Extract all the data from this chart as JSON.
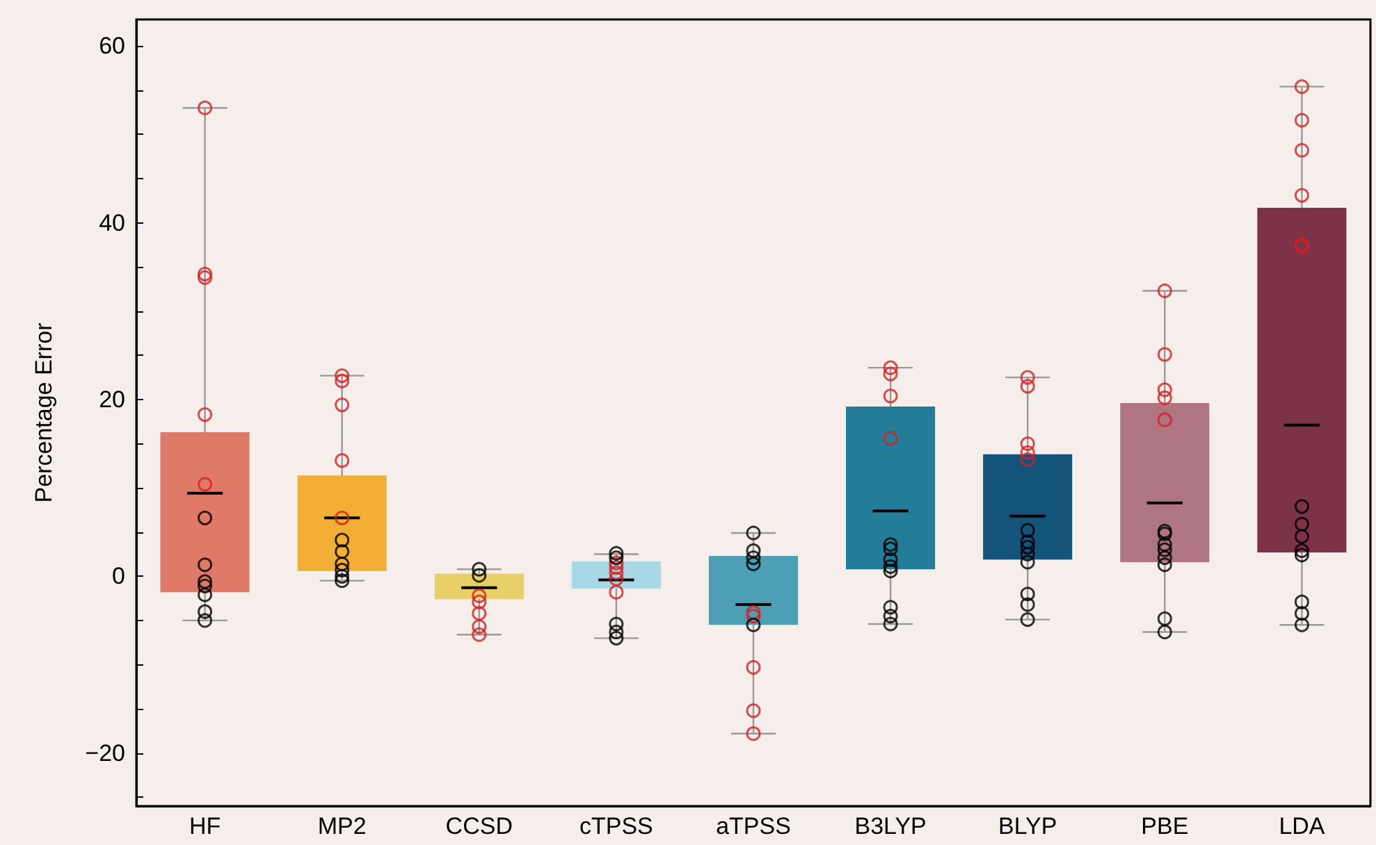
{
  "chart_data": {
    "type": "box",
    "ylabel": "Percentage Error",
    "categories": [
      "HF",
      "MP2",
      "CCSD",
      "cTPSS",
      "aTPSS",
      "B3LYP",
      "BLYP",
      "PBE",
      "LDA"
    ],
    "ylim": [
      -26,
      63
    ],
    "yticks": [
      {
        "value": -25,
        "label": null
      },
      {
        "value": -20,
        "label": "−20"
      },
      {
        "value": -15,
        "label": null
      },
      {
        "value": -10,
        "label": null
      },
      {
        "value": -5,
        "label": null
      },
      0,
      {
        "value": 5,
        "label": null
      },
      {
        "value": 10,
        "label": null
      },
      {
        "value": 15,
        "label": null
      },
      20,
      {
        "value": 25,
        "label": null
      },
      {
        "value": 30,
        "label": null
      },
      {
        "value": 35,
        "label": null
      },
      40,
      {
        "value": 45,
        "label": null
      },
      {
        "value": 50,
        "label": null
      },
      {
        "value": 55,
        "label": null
      },
      60
    ],
    "grid": false,
    "marker": "circle",
    "series": [
      {
        "type": "box",
        "colors": [
          "#e07a68",
          "#f2ae35",
          "#e8cf68",
          "#a8d8e6",
          "#4e9fb5",
          "#237c98",
          "#14537a",
          "#b07582",
          "#7d3347"
        ],
        "boxes": [
          {
            "low": -5.0,
            "q1": -1.8,
            "median": 9.4,
            "q3": 16.3,
            "high": 53
          },
          {
            "low": -0.5,
            "q1": 0.6,
            "median": 6.6,
            "q3": 11.4,
            "high": 22.7
          },
          {
            "low": -6.6,
            "q1": -2.6,
            "median": -1.3,
            "q3": 0.3,
            "high": 0.8
          },
          {
            "low": -7.0,
            "q1": -1.4,
            "median": -0.4,
            "q3": 1.7,
            "high": 2.5
          },
          {
            "low": -17.8,
            "q1": -5.5,
            "median": -3.2,
            "q3": 2.3,
            "high": 4.9
          },
          {
            "low": -5.4,
            "q1": 0.8,
            "median": 7.4,
            "q3": 19.2,
            "high": 23.6
          },
          {
            "low": -4.9,
            "q1": 1.9,
            "median": 6.8,
            "q3": 13.8,
            "high": 22.5
          },
          {
            "low": -6.3,
            "q1": 1.6,
            "median": 8.3,
            "q3": 19.6,
            "high": 32.3
          },
          {
            "low": -5.5,
            "q1": 2.7,
            "median": 17.1,
            "q3": 41.7,
            "high": 55.4
          }
        ]
      },
      {
        "type": "scatter",
        "color": "#d42020",
        "x": [
          "HF",
          "HF",
          "HF",
          "HF",
          "HF",
          "MP2",
          "MP2",
          "MP2",
          "MP2",
          "MP2",
          "CCSD",
          "CCSD",
          "CCSD",
          "CCSD",
          "CCSD",
          "cTPSS",
          "cTPSS",
          "cTPSS",
          "cTPSS",
          "cTPSS",
          "aTPSS",
          "aTPSS",
          "aTPSS",
          "aTPSS",
          "aTPSS",
          "B3LYP",
          "B3LYP",
          "B3LYP",
          "B3LYP",
          "BLYP",
          "BLYP",
          "BLYP",
          "BLYP",
          "BLYP",
          "PBE",
          "PBE",
          "PBE",
          "PBE",
          "PBE",
          "LDA",
          "LDA",
          "LDA",
          "LDA",
          "LDA",
          "LDA"
        ],
        "values": [
          53,
          34.2,
          33.8,
          18.3,
          10.4,
          22.7,
          22.1,
          19.4,
          13.1,
          6.6,
          -2.2,
          -2.9,
          -4.2,
          -5.7,
          -6.6,
          1.5,
          1.0,
          0.4,
          -0.3,
          -1.8,
          -4.1,
          -4.5,
          -10.3,
          -15.2,
          -17.8,
          23.6,
          22.9,
          20.4,
          15.6,
          22.5,
          21.5,
          15.0,
          14.0,
          13.2,
          32.3,
          25.1,
          21.1,
          20.2,
          17.7,
          55.4,
          51.6,
          48.2,
          43.1,
          37.5,
          37.3
        ]
      },
      {
        "type": "scatter",
        "color": "#000000",
        "x": [
          "HF",
          "HF",
          "HF",
          "HF",
          "HF",
          "HF",
          "HF",
          "MP2",
          "MP2",
          "MP2",
          "MP2",
          "MP2",
          "MP2",
          "CCSD",
          "CCSD",
          "cTPSS",
          "cTPSS",
          "cTPSS",
          "cTPSS",
          "cTPSS",
          "aTPSS",
          "aTPSS",
          "aTPSS",
          "aTPSS",
          "aTPSS",
          "B3LYP",
          "B3LYP",
          "B3LYP",
          "B3LYP",
          "B3LYP",
          "B3LYP",
          "B3LYP",
          "B3LYP",
          "BLYP",
          "BLYP",
          "BLYP",
          "BLYP",
          "BLYP",
          "BLYP",
          "BLYP",
          "BLYP",
          "PBE",
          "PBE",
          "PBE",
          "PBE",
          "PBE",
          "PBE",
          "PBE",
          "PBE",
          "LDA",
          "LDA",
          "LDA",
          "LDA",
          "LDA",
          "LDA",
          "LDA",
          "LDA"
        ],
        "values": [
          6.6,
          1.3,
          -0.6,
          -1.1,
          -2.1,
          -4.0,
          -5.0,
          4.1,
          2.8,
          1.4,
          0.7,
          0.0,
          -0.5,
          0.8,
          0.1,
          2.6,
          2.1,
          -5.4,
          -6.3,
          -7.0,
          4.9,
          2.9,
          2.1,
          1.4,
          -5.5,
          3.6,
          3.1,
          1.9,
          1.1,
          0.6,
          -3.5,
          -4.5,
          -5.4,
          5.2,
          3.9,
          3.3,
          2.5,
          1.6,
          -2.0,
          -3.2,
          -4.9,
          5.1,
          4.8,
          3.6,
          3.0,
          2.1,
          1.3,
          -4.8,
          -6.3,
          7.9,
          5.9,
          4.5,
          2.9,
          2.4,
          -2.9,
          -4.2,
          -5.5
        ]
      }
    ]
  }
}
